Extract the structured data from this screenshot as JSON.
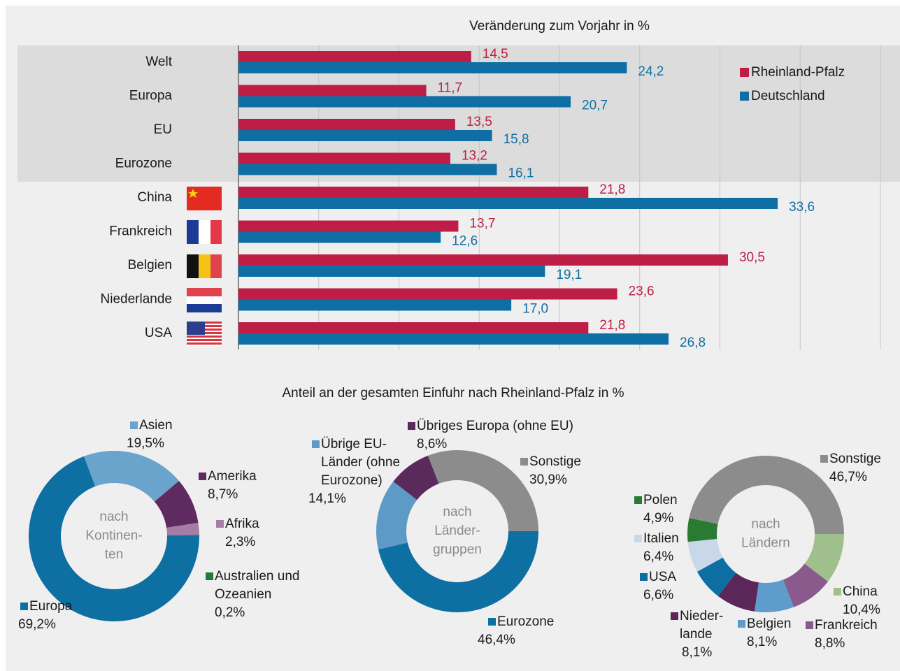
{
  "chart_data": [
    {
      "type": "hbar",
      "title": "Veränderung zum Vorjahr in %",
      "categories": [
        "Welt",
        "Europa",
        "EU",
        "Eurozone",
        "China",
        "Frankreich",
        "Belgien",
        "Niederlande",
        "USA"
      ],
      "series": [
        {
          "name": "Rheinland-Pfalz",
          "color": "#be1e45",
          "values": [
            14.5,
            11.7,
            13.5,
            13.2,
            21.8,
            13.7,
            30.5,
            23.6,
            21.8
          ],
          "value_labels": [
            "14,5",
            "11,7",
            "13,5",
            "13,2",
            "21,8",
            "13,7",
            "30,5",
            "23,6",
            "21,8"
          ]
        },
        {
          "name": "Deutschland",
          "color": "#0f6fa5",
          "values": [
            24.2,
            20.7,
            15.8,
            16.1,
            33.6,
            12.6,
            19.1,
            17.0,
            26.8
          ],
          "value_labels": [
            "24,2",
            "20,7",
            "15,8",
            "16,1",
            "33,6",
            "12,6",
            "19,1",
            "17,0",
            "26,8"
          ]
        }
      ],
      "xlim": [
        0,
        40
      ],
      "xticks": [
        0,
        5,
        10,
        15,
        20,
        25,
        30,
        35,
        40
      ],
      "grid": true,
      "legend": "upper right"
    },
    {
      "type": "donut",
      "start_angle": 90,
      "center_label": [
        "nach",
        "Kontinen-",
        "ten"
      ],
      "labels": [
        [
          "Europa"
        ],
        [
          "Asien"
        ],
        [
          "Amerika"
        ],
        [
          "Afrika"
        ],
        [
          "Australien und",
          "Ozeanien"
        ]
      ],
      "values": [
        69.2,
        19.5,
        8.7,
        2.3,
        0.2
      ],
      "value_labels": [
        "69,2%",
        "19,5%",
        "8,7%",
        "2,3%",
        "0,2%"
      ],
      "colors": [
        "#0e6fa3",
        "#6aa3cb",
        "#5e2a5f",
        "#a77ca6",
        "#1e7a3a"
      ]
    },
    {
      "type": "donut",
      "start_angle": 90,
      "center_label": [
        "nach",
        "Länder-",
        "gruppen"
      ],
      "labels": [
        [
          "Eurozone"
        ],
        [
          "Übrige EU-",
          "Länder (ohne",
          "Eurozone)"
        ],
        [
          "Übriges Europa (ohne EU)"
        ],
        [
          "Sonstige"
        ]
      ],
      "values": [
        46.4,
        14.1,
        8.6,
        30.9
      ],
      "value_labels": [
        "46,4%",
        "14,1%",
        "8,6%",
        "30,9%"
      ],
      "colors": [
        "#0e6fa3",
        "#5d9ac5",
        "#5b2a5d",
        "#8c8c8c"
      ]
    },
    {
      "type": "donut",
      "start_angle": 90,
      "center_label": [
        "nach",
        "Ländern"
      ],
      "labels": [
        [
          "China"
        ],
        [
          "Frankreich"
        ],
        [
          "Belgien"
        ],
        [
          "Nieder-",
          "lande"
        ],
        [
          "USA"
        ],
        [
          "Italien"
        ],
        [
          "Polen"
        ],
        [
          "Sonstige"
        ]
      ],
      "values": [
        10.4,
        8.8,
        8.1,
        8.1,
        6.6,
        6.4,
        4.9,
        46.7
      ],
      "value_labels": [
        "10,4%",
        "8,8%",
        "8,1%",
        "8,1%",
        "6,6%",
        "6,4%",
        "4,9%",
        "46,7%"
      ],
      "colors": [
        "#9fc08c",
        "#8a5a8c",
        "#5e9ccb",
        "#5b2658",
        "#0d6ea3",
        "#c8d8e8",
        "#2b7a33",
        "#8c8c8c"
      ]
    }
  ],
  "pie_section_title": "Anteil an der gesamten Einfuhr nach Rheinland-Pfalz in %"
}
